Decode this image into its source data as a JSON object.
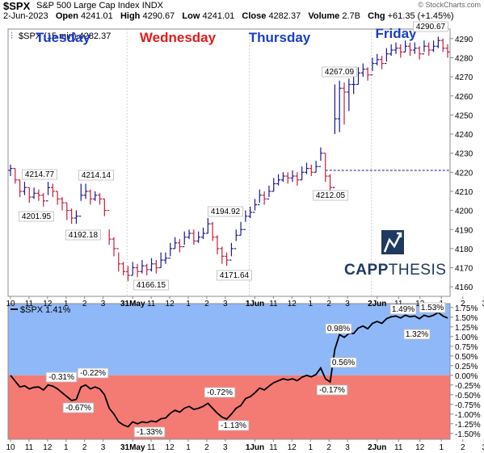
{
  "header": {
    "symbol": "$SPX",
    "description": "S&P 500 Large Cap Index",
    "exchange": "INDX",
    "watermark": "© StockCharts.com",
    "date": "2-Jun-2023",
    "open_label": "Open",
    "open": "4241.01",
    "high_label": "High",
    "high": "4290.67",
    "low_label": "Low",
    "low": "4241.01",
    "close_label": "Close",
    "close": "4282.37",
    "volume_label": "Volume",
    "volume": "2.7B",
    "chg_label": "Chg",
    "chg": "+61.35 (+1.45%)"
  },
  "logo": {
    "name": "CAPPTHESIS",
    "part1": "CAPP",
    "part2": "THESIS",
    "color": "#1f3a60"
  },
  "colors": {
    "up": "#1a1a8c",
    "down": "#c81e3c",
    "day_label_blue": "#1a3dc8",
    "day_label_red": "#e01b1b",
    "panel_pos": "#8fb8f8",
    "panel_neg": "#f47a74",
    "ref_line": "#1a1a8c"
  },
  "chart_data": [
    {
      "type": "ohlc",
      "legend": "$SPX (15 min) 4282.37",
      "y_axis_side": "right",
      "ylim": [
        4155,
        4295
      ],
      "yticks": [
        4160,
        4170,
        4180,
        4190,
        4200,
        4210,
        4220,
        4230,
        4240,
        4250,
        4260,
        4270,
        4280,
        4290
      ],
      "reference_line": 4221,
      "x_tick_labels": [
        "10",
        "11",
        "12",
        "1",
        "2",
        "3",
        "31May",
        "11",
        "12",
        "1",
        "2",
        "3",
        "1Jun",
        "11",
        "12",
        "1",
        "2",
        "3",
        "2Jun",
        "11",
        "12",
        "1",
        "2",
        "3"
      ],
      "day_labels": [
        {
          "text": "Tuesday",
          "color": "blue"
        },
        {
          "text": "Wednesday",
          "color": "red"
        },
        {
          "text": "Thursday",
          "color": "blue"
        },
        {
          "text": "Friday",
          "color": "blue"
        }
      ],
      "annotations": [
        "4214.77",
        "4201.95",
        "4214.14",
        "4192.18",
        "4166.15",
        "4194.92",
        "4171.64",
        "4212.05",
        "4267.09",
        "4290.67"
      ],
      "close": [
        4222,
        4216,
        4210,
        4212,
        4207,
        4209,
        4208,
        4205,
        4212,
        4210,
        4206,
        4204,
        4200,
        4196,
        4197,
        4208,
        4210,
        4206,
        4208,
        4206,
        4200,
        4185,
        4180,
        4172,
        4168,
        4166,
        4170,
        4168,
        4171,
        4169,
        4172,
        4170,
        4174,
        4175,
        4180,
        4183,
        4181,
        4186,
        4188,
        4184,
        4186,
        4188,
        4193,
        4186,
        4180,
        4176,
        4174,
        4180,
        4187,
        4190,
        4197,
        4199,
        4203,
        4208,
        4206,
        4210,
        4214,
        4216,
        4218,
        4217,
        4218,
        4216,
        4220,
        4222,
        4220,
        4223,
        4230,
        4218,
        4212,
        4248,
        4264,
        4262,
        4266,
        4266,
        4272,
        4274,
        4271,
        4277,
        4279,
        4277,
        4282,
        4284,
        4285,
        4283,
        4286,
        4284,
        4285,
        4282,
        4286,
        4284,
        4286,
        4289,
        4285,
        4283
      ],
      "high": [
        4224,
        4222,
        4216,
        4215,
        4212,
        4212,
        4211,
        4209,
        4215,
        4214,
        4210,
        4207,
        4204,
        4201,
        4200,
        4214,
        4214,
        4211,
        4210,
        4209,
        4206,
        4190,
        4186,
        4178,
        4173,
        4171,
        4173,
        4172,
        4174,
        4172,
        4175,
        4174,
        4178,
        4178,
        4183,
        4186,
        4185,
        4189,
        4190,
        4190,
        4189,
        4191,
        4196,
        4194,
        4187,
        4181,
        4178,
        4183,
        4190,
        4194,
        4200,
        4202,
        4206,
        4211,
        4210,
        4213,
        4217,
        4219,
        4220,
        4220,
        4221,
        4220,
        4223,
        4225,
        4224,
        4226,
        4233,
        4230,
        4219,
        4266,
        4268,
        4267,
        4269,
        4270,
        4275,
        4277,
        4275,
        4280,
        4282,
        4281,
        4285,
        4287,
        4288,
        4287,
        4289,
        4288,
        4288,
        4286,
        4289,
        4288,
        4289,
        4291,
        4290,
        4287
      ],
      "low": [
        4218,
        4214,
        4207,
        4208,
        4204,
        4206,
        4205,
        4202,
        4208,
        4207,
        4203,
        4200,
        4195,
        4193,
        4193,
        4205,
        4206,
        4203,
        4205,
        4203,
        4197,
        4182,
        4176,
        4168,
        4166,
        4163,
        4166,
        4165,
        4167,
        4166,
        4168,
        4167,
        4170,
        4172,
        4176,
        4180,
        4178,
        4182,
        4185,
        4182,
        4183,
        4185,
        4188,
        4184,
        4177,
        4172,
        4171,
        4176,
        4184,
        4187,
        4194,
        4196,
        4200,
        4204,
        4203,
        4207,
        4210,
        4213,
        4215,
        4214,
        4215,
        4213,
        4216,
        4219,
        4218,
        4220,
        4226,
        4215,
        4209,
        4240,
        4241,
        4245,
        4252,
        4261,
        4266,
        4270,
        4268,
        4273,
        4276,
        4274,
        4278,
        4281,
        4282,
        4280,
        4283,
        4281,
        4282,
        4279,
        4283,
        4281,
        4283,
        4285,
        4283,
        4280
      ]
    },
    {
      "type": "line",
      "legend": "$SPX 1.41%",
      "y_axis_side": "right",
      "ylim": [
        -1.65,
        1.85
      ],
      "yticks": [
        -1.5,
        -1.25,
        -1.0,
        -0.75,
        -0.5,
        -0.25,
        0.0,
        0.25,
        0.5,
        0.75,
        1.0,
        1.25,
        1.5,
        1.75
      ],
      "ytick_labels": [
        "-1.50%",
        "-1.25%",
        "-1.00%",
        "-0.75%",
        "-0.50%",
        "-0.25%",
        "0.00%",
        "0.25%",
        "0.50%",
        "0.75%",
        "1.00%",
        "1.25%",
        "1.50%",
        "1.75%"
      ],
      "x_tick_labels": [
        "10",
        "11",
        "12",
        "1",
        "2",
        "3",
        "31May",
        "11",
        "12",
        "1",
        "2",
        "3",
        "1Jun",
        "11",
        "12",
        "1",
        "2",
        "3",
        "2Jun",
        "11",
        "12",
        "1",
        "2",
        "3"
      ],
      "annotations": [
        "-0.31%",
        "-0.22%",
        "-0.67%",
        "-1.33%",
        "-0.72%",
        "-1.13%",
        "-0.17%",
        "0.56%",
        "0.98%",
        "1.49%",
        "1.53%",
        "1.32%"
      ],
      "values": [
        0.0,
        -0.15,
        -0.3,
        -0.27,
        -0.35,
        -0.31,
        -0.3,
        -0.38,
        -0.25,
        -0.28,
        -0.35,
        -0.45,
        -0.55,
        -0.65,
        -0.62,
        -0.3,
        -0.25,
        -0.35,
        -0.3,
        -0.35,
        -0.5,
        -0.85,
        -1.0,
        -1.2,
        -1.28,
        -1.33,
        -1.2,
        -1.25,
        -1.2,
        -1.22,
        -1.18,
        -1.2,
        -1.12,
        -1.1,
        -0.98,
        -0.9,
        -0.95,
        -0.85,
        -0.8,
        -0.88,
        -0.85,
        -0.8,
        -0.72,
        -0.85,
        -0.98,
        -1.08,
        -1.13,
        -1.0,
        -0.85,
        -0.78,
        -0.6,
        -0.55,
        -0.45,
        -0.33,
        -0.38,
        -0.28,
        -0.19,
        -0.14,
        -0.09,
        -0.12,
        -0.09,
        -0.14,
        -0.05,
        0.0,
        -0.04,
        0.02,
        0.19,
        -0.09,
        -0.17,
        0.67,
        1.05,
        0.98,
        1.08,
        1.08,
        1.22,
        1.27,
        1.2,
        1.34,
        1.39,
        1.34,
        1.46,
        1.51,
        1.53,
        1.48,
        1.55,
        1.51,
        1.53,
        1.46,
        1.55,
        1.51,
        1.55,
        1.62,
        1.53,
        1.48
      ]
    }
  ]
}
